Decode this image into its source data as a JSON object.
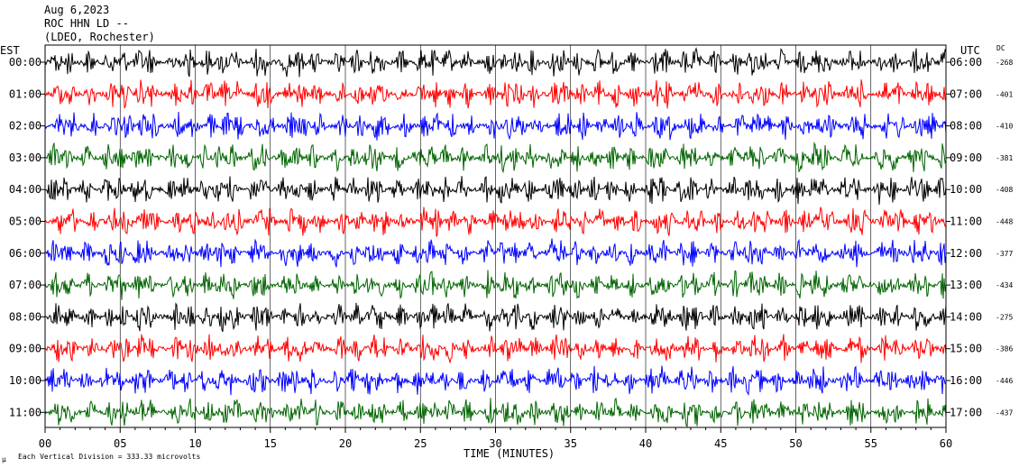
{
  "header": {
    "date": "Aug 6,2023",
    "station": "ROC HHN LD --",
    "network": "(LDEO, Rochester)"
  },
  "left_axis_title": "EST",
  "right_axis_title": "UTC",
  "dc_title": "DC",
  "footer": {
    "scale_note": "Each Vertical Division = 333.33 microvolts",
    "corner_mark": "μ"
  },
  "chart_data": {
    "type": "line",
    "title": "",
    "xlabel": "TIME (MINUTES)",
    "ylabel": "",
    "xlim": [
      0,
      60
    ],
    "x_ticks": [
      "00",
      "05",
      "10",
      "15",
      "20",
      "25",
      "30",
      "35",
      "40",
      "45",
      "50",
      "55",
      "60"
    ],
    "grid": true,
    "legend": "none",
    "series": [
      {
        "est": "00:00",
        "utc": "06:00",
        "dc": "-268",
        "color": "#000000"
      },
      {
        "est": "01:00",
        "utc": "07:00",
        "dc": "-401",
        "color": "#ff0000"
      },
      {
        "est": "02:00",
        "utc": "08:00",
        "dc": "-410",
        "color": "#0000ff"
      },
      {
        "est": "03:00",
        "utc": "09:00",
        "dc": "-381",
        "color": "#006400"
      },
      {
        "est": "04:00",
        "utc": "10:00",
        "dc": "-408",
        "color": "#000000"
      },
      {
        "est": "05:00",
        "utc": "11:00",
        "dc": "-448",
        "color": "#ff0000"
      },
      {
        "est": "06:00",
        "utc": "12:00",
        "dc": "-377",
        "color": "#0000ff"
      },
      {
        "est": "07:00",
        "utc": "13:00",
        "dc": "-434",
        "color": "#006400"
      },
      {
        "est": "08:00",
        "utc": "14:00",
        "dc": "-275",
        "color": "#000000"
      },
      {
        "est": "09:00",
        "utc": "15:00",
        "dc": "-386",
        "color": "#ff0000"
      },
      {
        "est": "10:00",
        "utc": "16:00",
        "dc": "-446",
        "color": "#0000ff"
      },
      {
        "est": "11:00",
        "utc": "17:00",
        "dc": "-437",
        "color": "#006400"
      }
    ]
  }
}
